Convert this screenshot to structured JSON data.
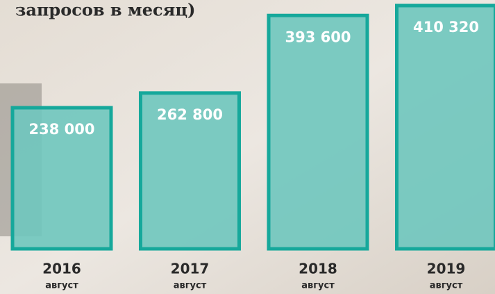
{
  "chart_data": {
    "type": "bar",
    "title": "запросов в месяц)",
    "categories": [
      "2016",
      "2017",
      "2018",
      "2019"
    ],
    "sublabels": [
      "август",
      "август",
      "август",
      "август"
    ],
    "values": [
      238000,
      262800,
      393600,
      410320
    ],
    "value_labels": [
      "238 000",
      "262 800",
      "393 600",
      "410 320"
    ],
    "color": "#6fc6be",
    "edge_color": "#16a89b"
  }
}
